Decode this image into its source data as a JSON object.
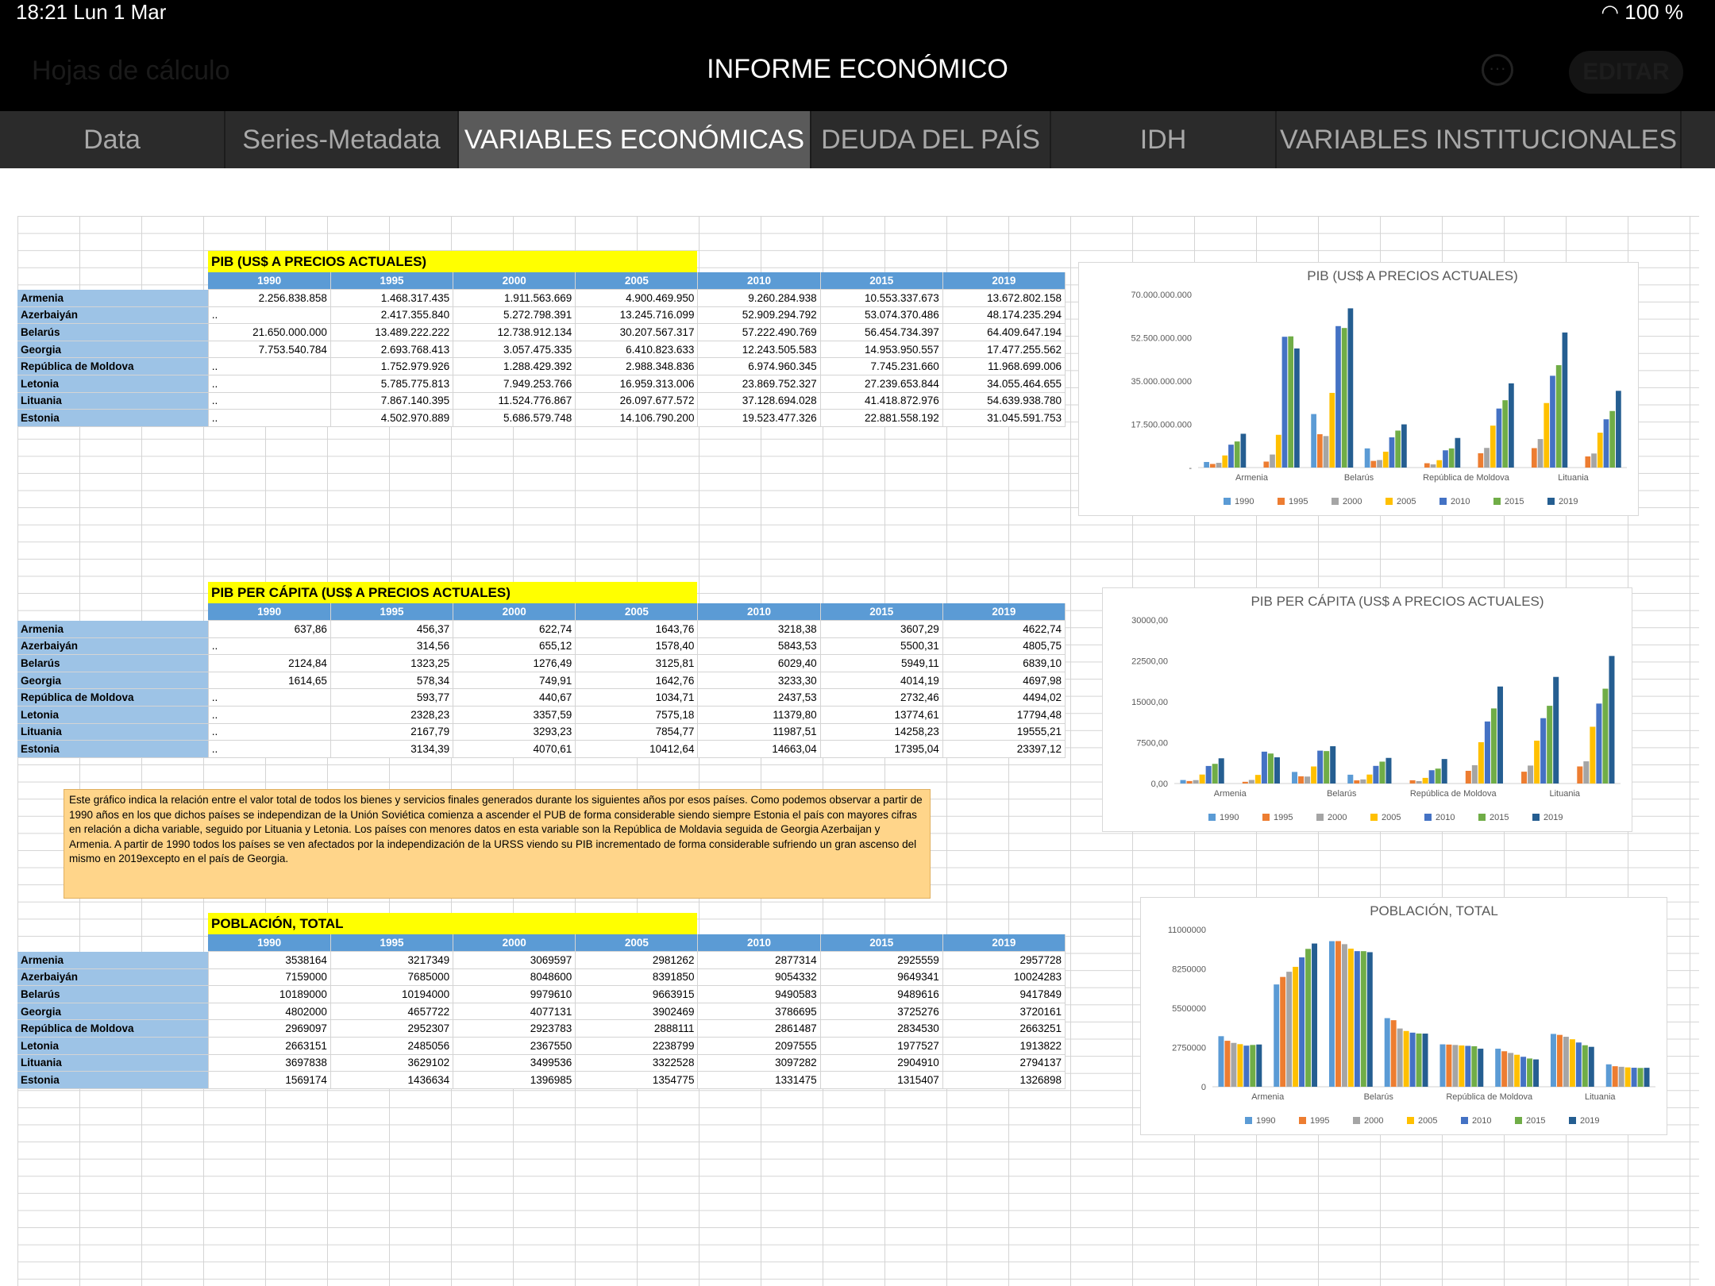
{
  "status": {
    "time": "18:21",
    "date": "Lun 1 Mar",
    "wifi_icon": "wifi-icon",
    "battery": "100 %"
  },
  "header": {
    "back_label": "Hojas de cálculo",
    "title": "INFORME ECONÓMICO",
    "more_icon": "ellipsis-icon",
    "edit_label": "EDITAR"
  },
  "tabs": [
    "Data",
    "Series-Metadata",
    "VARIABLES ECONÓMICAS",
    "DEUDA DEL PAÍS",
    "IDH",
    "VARIABLES INSTITUCIONALES"
  ],
  "active_tab": 2,
  "years": [
    "1990",
    "1995",
    "2000",
    "2005",
    "2010",
    "2015",
    "2019"
  ],
  "countries": [
    "Armenia",
    "Azerbaiyán",
    "Belarús",
    "Georgia",
    "República de Moldova",
    "Letonia",
    "Lituania",
    "Estonia"
  ],
  "tables": [
    {
      "title": "PIB (US$ A PRECIOS ACTUALES)",
      "rows": [
        [
          "2.256.838.858",
          "1.468.317.435",
          "1.911.563.669",
          "4.900.469.950",
          "9.260.284.938",
          "10.553.337.673",
          "13.672.802.158"
        ],
        [
          "..",
          "2.417.355.840",
          "5.272.798.391",
          "13.245.716.099",
          "52.909.294.792",
          "53.074.370.486",
          "48.174.235.294"
        ],
        [
          "21.650.000.000",
          "13.489.222.222",
          "12.738.912.134",
          "30.207.567.317",
          "57.222.490.769",
          "56.454.734.397",
          "64.409.647.194"
        ],
        [
          "7.753.540.784",
          "2.693.768.413",
          "3.057.475.335",
          "6.410.823.633",
          "12.243.505.583",
          "14.953.950.557",
          "17.477.255.562"
        ],
        [
          "..",
          "1.752.979.926",
          "1.288.429.392",
          "2.988.348.836",
          "6.974.960.345",
          "7.745.231.660",
          "11.968.699.006"
        ],
        [
          "..",
          "5.785.775.813",
          "7.949.253.766",
          "16.959.313.006",
          "23.869.752.327",
          "27.239.653.844",
          "34.055.464.655"
        ],
        [
          "..",
          "7.867.140.395",
          "11.524.776.867",
          "26.097.677.572",
          "37.128.694.028",
          "41.418.872.976",
          "54.639.938.780"
        ],
        [
          "..",
          "4.502.970.889",
          "5.686.579.748",
          "14.106.790.200",
          "19.523.477.326",
          "22.881.558.192",
          "31.045.591.753"
        ]
      ]
    },
    {
      "title": "PIB PER CÁPITA (US$ A PRECIOS ACTUALES)",
      "rows": [
        [
          "637,86",
          "456,37",
          "622,74",
          "1643,76",
          "3218,38",
          "3607,29",
          "4622,74"
        ],
        [
          "..",
          "314,56",
          "655,12",
          "1578,40",
          "5843,53",
          "5500,31",
          "4805,75"
        ],
        [
          "2124,84",
          "1323,25",
          "1276,49",
          "3125,81",
          "6029,40",
          "5949,11",
          "6839,10"
        ],
        [
          "1614,65",
          "578,34",
          "749,91",
          "1642,76",
          "3233,30",
          "4014,19",
          "4697,98"
        ],
        [
          "..",
          "593,77",
          "440,67",
          "1034,71",
          "2437,53",
          "2732,46",
          "4494,02"
        ],
        [
          "..",
          "2328,23",
          "3357,59",
          "7575,18",
          "11379,80",
          "13774,61",
          "17794,48"
        ],
        [
          "..",
          "2167,79",
          "3293,23",
          "7854,77",
          "11987,51",
          "14258,23",
          "19555,21"
        ],
        [
          "..",
          "3134,39",
          "4070,61",
          "10412,64",
          "14663,04",
          "17395,04",
          "23397,12"
        ]
      ]
    },
    {
      "title": "POBLACIÓN, TOTAL",
      "rows": [
        [
          "3538164",
          "3217349",
          "3069597",
          "2981262",
          "2877314",
          "2925559",
          "2957728"
        ],
        [
          "7159000",
          "7685000",
          "8048600",
          "8391850",
          "9054332",
          "9649341",
          "10024283"
        ],
        [
          "10189000",
          "10194000",
          "9979610",
          "9663915",
          "9490583",
          "9489616",
          "9417849"
        ],
        [
          "4802000",
          "4657722",
          "4077131",
          "3902469",
          "3786695",
          "3725276",
          "3720161"
        ],
        [
          "2969097",
          "2952307",
          "2923783",
          "2888111",
          "2861487",
          "2834530",
          "2663251"
        ],
        [
          "2663151",
          "2485056",
          "2367550",
          "2238799",
          "2097555",
          "1977527",
          "1913822"
        ],
        [
          "3697838",
          "3629102",
          "3499536",
          "3322528",
          "3097282",
          "2904910",
          "2794137"
        ],
        [
          "1569174",
          "1436634",
          "1396985",
          "1354775",
          "1331475",
          "1315407",
          "1326898"
        ]
      ]
    }
  ],
  "note": "Este gráfico indica la relación entre el valor total de todos los bienes y servicios finales generados durante los siguientes años por esos países. Como podemos observar a partir de 1990 años en los que dichos países se independizan de la Unión Soviética comienza a ascender el PUB de forma considerable siendo siempre Estonia el país con mayores cifras en relación a dicha variable, seguido por Lituania y Letonia. Los países con menores datos en esta variable son la República de Moldavia seguida de Georgia Azerbaijan y Armenia. A partir de 1990 todos los países se ven afectados por la independización de la URSS viendo su PIB incrementado de forma considerable sufriendo un gran ascenso del mismo en 2019excepto en el país de Georgia.",
  "colors": {
    "series": [
      "#5b9bd5",
      "#ed7d31",
      "#a5a5a5",
      "#ffc000",
      "#4472c4",
      "#70ad47",
      "#255e91"
    ],
    "header_blue": "#5b9bd5",
    "row_label_blue": "#9dc3e6",
    "title_yellow": "#ffff00",
    "note_orange": "#ffd58a"
  },
  "chart_data": [
    {
      "type": "bar",
      "title": "PIB (US$ A PRECIOS ACTUALES)",
      "categories": [
        "Armenia",
        "Azerbaiyán",
        "Belarús",
        "Georgia",
        "República de Moldova",
        "Letonia",
        "Lituania",
        "Estonia"
      ],
      "category_labels_shown": [
        "Armenia",
        "",
        "Belarús",
        "",
        "República de Moldova",
        "",
        "Lituania",
        ""
      ],
      "ylim": [
        0,
        70000000000
      ],
      "yticks": [
        0,
        17500000000,
        35000000000,
        52500000000,
        70000000000
      ],
      "ytick_labels": [
        "-",
        "17.500.000.000",
        "35.000.000.000",
        "52.500.000.000",
        "70.000.000.000"
      ],
      "legend": "bottom",
      "series": [
        {
          "name": "1990",
          "values": [
            2256838858,
            0,
            21650000000,
            7753540784,
            0,
            0,
            0,
            0
          ]
        },
        {
          "name": "1995",
          "values": [
            1468317435,
            2417355840,
            13489222222,
            2693768413,
            1752979926,
            5785775813,
            7867140395,
            4502970889
          ]
        },
        {
          "name": "2000",
          "values": [
            1911563669,
            5272798391,
            12738912134,
            3057475335,
            1288429392,
            7949253766,
            11524776867,
            5686579748
          ]
        },
        {
          "name": "2005",
          "values": [
            4900469950,
            13245716099,
            30207567317,
            6410823633,
            2988348836,
            16959313006,
            26097677572,
            14106790200
          ]
        },
        {
          "name": "2010",
          "values": [
            9260284938,
            52909294792,
            57222490769,
            12243505583,
            6974960345,
            23869752327,
            37128694028,
            19523477326
          ]
        },
        {
          "name": "2015",
          "values": [
            10553337673,
            53074370486,
            56454734397,
            14953950557,
            7745231660,
            27239653844,
            41418872976,
            22881558192
          ]
        },
        {
          "name": "2019",
          "values": [
            13672802158,
            48174235294,
            64409647194,
            17477255562,
            11968699006,
            34055464655,
            54639938780,
            31045591753
          ]
        }
      ]
    },
    {
      "type": "bar",
      "title": "PIB PER CÁPITA (US$ A PRECIOS ACTUALES)",
      "categories": [
        "Armenia",
        "Azerbaiyán",
        "Belarús",
        "Georgia",
        "República de Moldova",
        "Letonia",
        "Lituania",
        "Estonia"
      ],
      "category_labels_shown": [
        "Armenia",
        "",
        "Belarús",
        "",
        "República de Moldova",
        "",
        "Lituania",
        ""
      ],
      "ylim": [
        0,
        30000
      ],
      "yticks": [
        0,
        7500,
        15000,
        22500,
        30000
      ],
      "ytick_labels": [
        "0,00",
        "7500,00",
        "15000,00",
        "22500,00",
        "30000,00"
      ],
      "legend": "bottom",
      "series": [
        {
          "name": "1990",
          "values": [
            637.86,
            0,
            2124.84,
            1614.65,
            0,
            0,
            0,
            0
          ]
        },
        {
          "name": "1995",
          "values": [
            456.37,
            314.56,
            1323.25,
            578.34,
            593.77,
            2328.23,
            2167.79,
            3134.39
          ]
        },
        {
          "name": "2000",
          "values": [
            622.74,
            655.12,
            1276.49,
            749.91,
            440.67,
            3357.59,
            3293.23,
            4070.61
          ]
        },
        {
          "name": "2005",
          "values": [
            1643.76,
            1578.4,
            3125.81,
            1642.76,
            1034.71,
            7575.18,
            7854.77,
            10412.64
          ]
        },
        {
          "name": "2010",
          "values": [
            3218.38,
            5843.53,
            6029.4,
            3233.3,
            2437.53,
            11379.8,
            11987.51,
            14663.04
          ]
        },
        {
          "name": "2015",
          "values": [
            3607.29,
            5500.31,
            5949.11,
            4014.19,
            2732.46,
            13774.61,
            14258.23,
            17395.04
          ]
        },
        {
          "name": "2019",
          "values": [
            4622.74,
            4805.75,
            6839.1,
            4697.98,
            4494.02,
            17794.48,
            19555.21,
            23397.12
          ]
        }
      ]
    },
    {
      "type": "bar",
      "title": "POBLACIÓN, TOTAL",
      "categories": [
        "Armenia",
        "Azerbaiyán",
        "Belarús",
        "Georgia",
        "República de Moldova",
        "Letonia",
        "Lituania",
        "Estonia"
      ],
      "category_labels_shown": [
        "Armenia",
        "",
        "Belarús",
        "",
        "República de Moldova",
        "",
        "Lituania",
        ""
      ],
      "ylim": [
        0,
        11000000
      ],
      "yticks": [
        0,
        2750000,
        5500000,
        8250000,
        11000000
      ],
      "ytick_labels": [
        "0",
        "2750000",
        "5500000",
        "8250000",
        "11000000"
      ],
      "legend": "bottom",
      "series": [
        {
          "name": "1990",
          "values": [
            3538164,
            7159000,
            10189000,
            4802000,
            2969097,
            2663151,
            3697838,
            1569174
          ]
        },
        {
          "name": "1995",
          "values": [
            3217349,
            7685000,
            10194000,
            4657722,
            2952307,
            2485056,
            3629102,
            1436634
          ]
        },
        {
          "name": "2000",
          "values": [
            3069597,
            8048600,
            9979610,
            4077131,
            2923783,
            2367550,
            3499536,
            1396985
          ]
        },
        {
          "name": "2005",
          "values": [
            2981262,
            8391850,
            9663915,
            3902469,
            2888111,
            2238799,
            3322528,
            1354775
          ]
        },
        {
          "name": "2010",
          "values": [
            2877314,
            9054332,
            9490583,
            3786695,
            2861487,
            2097555,
            3097282,
            1331475
          ]
        },
        {
          "name": "2015",
          "values": [
            2925559,
            9649341,
            9489616,
            3725276,
            2834530,
            1977527,
            2904910,
            1315407
          ]
        },
        {
          "name": "2019",
          "values": [
            2957728,
            10024283,
            9417849,
            3720161,
            2663251,
            1913822,
            2794137,
            1326898
          ]
        }
      ]
    }
  ]
}
